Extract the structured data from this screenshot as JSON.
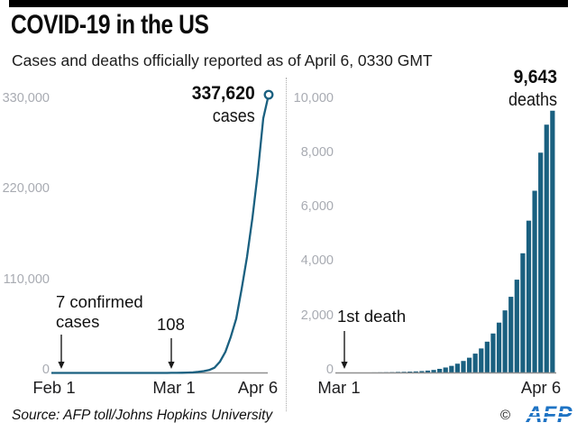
{
  "header": {
    "title": "COVID-19 in the US",
    "subtitle": "Cases and deaths officially reported as of April 6, 0330 GMT"
  },
  "footer": {
    "source": "Source: AFP toll/Johns Hopkins University",
    "copyright": "©",
    "logo": "AFP"
  },
  "colors": {
    "accent_teal": "#1a6080",
    "axis_gray": "#8f8f8f",
    "tick_label_gray": "#a8abb2",
    "logo_blue": "#1e73c4",
    "text_black": "#141414"
  },
  "chart_data": [
    {
      "id": "cases-line-chart",
      "type": "line",
      "series_name": "Cumulative confirmed cases",
      "endpoint_label": {
        "value": "337,620",
        "unit": "cases"
      },
      "annotations": [
        {
          "text": "7 confirmed cases",
          "date": "Feb 1"
        },
        {
          "text": "108",
          "date": "Mar 1"
        }
      ],
      "y_axis": {
        "ticks": [
          0,
          110000,
          220000,
          330000
        ],
        "tick_labels": [
          "0",
          "110,000",
          "220,000",
          "330,000"
        ]
      },
      "x_axis": {
        "tick_labels": [
          "Feb 1",
          "Mar 1",
          "Apr 6"
        ]
      },
      "points": [
        [
          "Feb 1",
          7
        ],
        [
          "Feb 6",
          12
        ],
        [
          "Feb 11",
          13
        ],
        [
          "Feb 15",
          15
        ],
        [
          "Feb 19",
          15
        ],
        [
          "Feb 23",
          15
        ],
        [
          "Feb 27",
          16
        ],
        [
          "Feb 29",
          25
        ],
        [
          "Mar 1",
          108
        ],
        [
          "Mar 3",
          125
        ],
        [
          "Mar 5",
          220
        ],
        [
          "Mar 7",
          420
        ],
        [
          "Mar 9",
          600
        ],
        [
          "Mar 11",
          1300
        ],
        [
          "Mar 13",
          2200
        ],
        [
          "Mar 15",
          3500
        ],
        [
          "Mar 17",
          6400
        ],
        [
          "Mar 19",
          13700
        ],
        [
          "Mar 21",
          25500
        ],
        [
          "Mar 23",
          43800
        ],
        [
          "Mar 25",
          65800
        ],
        [
          "Mar 27",
          101700
        ],
        [
          "Mar 29",
          140900
        ],
        [
          "Mar 31",
          188200
        ],
        [
          "Apr 2",
          243500
        ],
        [
          "Apr 4",
          308900
        ],
        [
          "Apr 6",
          337620
        ]
      ]
    },
    {
      "id": "deaths-bar-chart",
      "type": "bar",
      "series_name": "Cumulative deaths",
      "endpoint_label": {
        "value": "9,643",
        "unit": "deaths"
      },
      "annotations": [
        {
          "text": "1st death",
          "date": "Mar 1"
        }
      ],
      "y_axis": {
        "ticks": [
          0,
          2000,
          4000,
          6000,
          8000,
          10000
        ],
        "tick_labels": [
          "0",
          "2,000",
          "4,000",
          "6,000",
          "8,000",
          "10,000"
        ]
      },
      "x_axis": {
        "tick_labels": [
          "Mar 1",
          "Apr 6"
        ]
      },
      "categories": [
        "Mar 1",
        "Mar 2",
        "Mar 3",
        "Mar 4",
        "Mar 5",
        "Mar 6",
        "Mar 7",
        "Mar 8",
        "Mar 9",
        "Mar 10",
        "Mar 11",
        "Mar 12",
        "Mar 13",
        "Mar 14",
        "Mar 15",
        "Mar 16",
        "Mar 17",
        "Mar 18",
        "Mar 19",
        "Mar 20",
        "Mar 21",
        "Mar 22",
        "Mar 23",
        "Mar 24",
        "Mar 25",
        "Mar 26",
        "Mar 27",
        "Mar 28",
        "Mar 29",
        "Mar 30",
        "Mar 31",
        "Apr 1",
        "Apr 2",
        "Apr 3",
        "Apr 4",
        "Apr 5",
        "Apr 6"
      ],
      "values": [
        1,
        5,
        9,
        11,
        12,
        15,
        19,
        22,
        26,
        30,
        38,
        42,
        49,
        57,
        68,
        86,
        109,
        150,
        200,
        260,
        340,
        440,
        560,
        710,
        900,
        1150,
        1450,
        1850,
        2300,
        2800,
        3430,
        4400,
        5600,
        6700,
        8100,
        9130,
        9643
      ]
    }
  ]
}
